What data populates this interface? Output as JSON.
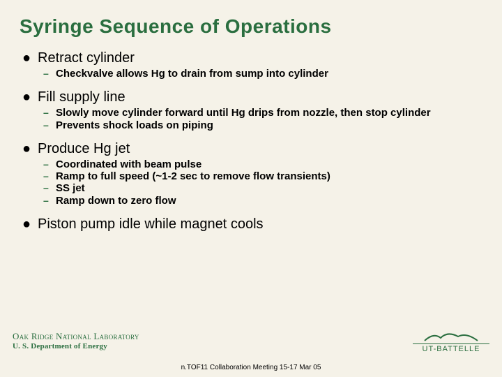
{
  "title": "Syringe Sequence of Operations",
  "bullets": [
    {
      "text": "Retract cylinder",
      "subs": [
        "Checkvalve allows Hg to drain from sump into cylinder"
      ]
    },
    {
      "text": "Fill supply line",
      "subs": [
        "Slowly move cylinder forward until Hg drips from nozzle, then stop cylinder",
        "Prevents shock loads on piping"
      ]
    },
    {
      "text": "Produce Hg jet",
      "subs": [
        "Coordinated with beam pulse",
        "Ramp to full speed (~1-2 sec to remove flow transients)",
        "SS jet",
        "Ramp down to zero flow"
      ]
    },
    {
      "text": "Piston pump idle while magnet cools",
      "subs": []
    }
  ],
  "footer": {
    "line1": "Oak Ridge National Laboratory",
    "line2": "U. S. Department of Energy",
    "meeting": "n.TOF11 Collaboration Meeting 15-17 Mar 05",
    "logo_text": "UT-BATTELLE"
  },
  "colors": {
    "title": "#2a6e3f",
    "dash": "#2a6e3f",
    "background": "#f5f2e8"
  }
}
